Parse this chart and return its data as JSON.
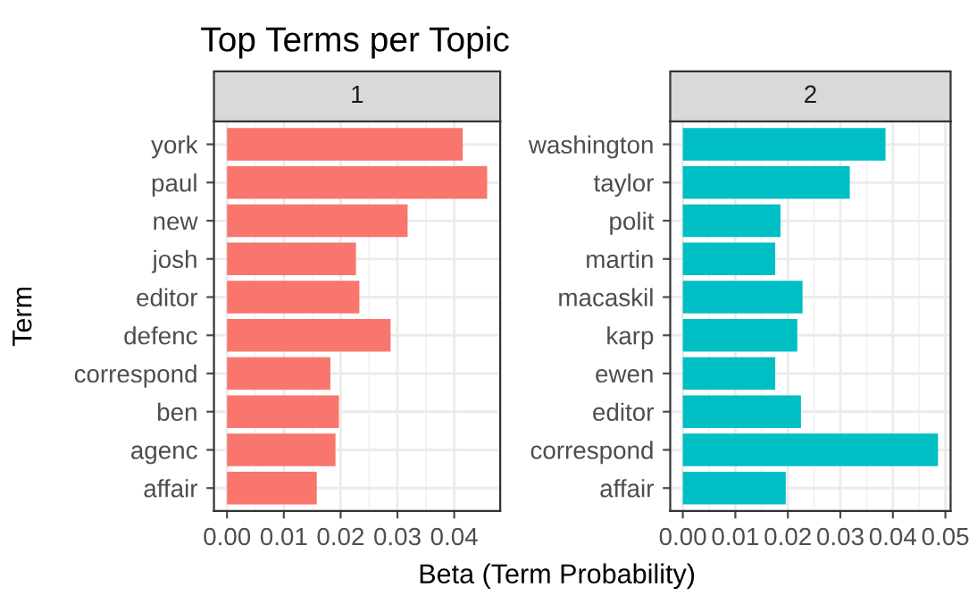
{
  "chart_data": [
    {
      "type": "bar",
      "orientation": "horizontal",
      "title": "Top Terms per Topic",
      "subtitle": "1",
      "ylabel": "Term",
      "xlabel": "Beta (Term Probability)",
      "categories": [
        "york",
        "paul",
        "new",
        "josh",
        "editor",
        "defenc",
        "correspond",
        "ben",
        "agenc",
        "affair"
      ],
      "series": [
        {
          "color": "#f8766d",
          "values": [
            0.0415,
            0.0458,
            0.0318,
            0.0227,
            0.0233,
            0.0288,
            0.0182,
            0.0197,
            0.0191,
            0.0158
          ]
        }
      ],
      "xlim": [
        -0.0023,
        0.0481
      ],
      "xticks": [
        {
          "value": 0,
          "label": "0.00"
        },
        {
          "value": 0.01,
          "label": "0.01"
        },
        {
          "value": 0.02,
          "label": "0.02"
        },
        {
          "value": 0.03,
          "label": "0.03"
        },
        {
          "value": 0.04,
          "label": "0.04"
        }
      ],
      "grid": true
    },
    {
      "type": "bar",
      "orientation": "horizontal",
      "subtitle": "2",
      "categories": [
        "washington",
        "taylor",
        "polit",
        "martin",
        "macaskil",
        "karp",
        "ewen",
        "editor",
        "correspond",
        "affair"
      ],
      "series": [
        {
          "color": "#00bfc4",
          "values": [
            0.0386,
            0.0318,
            0.0186,
            0.0176,
            0.0228,
            0.0218,
            0.0176,
            0.0225,
            0.0486,
            0.0196
          ]
        }
      ],
      "xlim": [
        -0.0024,
        0.051
      ],
      "xticks": [
        {
          "value": 0,
          "label": "0.00"
        },
        {
          "value": 0.01,
          "label": "0.01"
        },
        {
          "value": 0.02,
          "label": "0.02"
        },
        {
          "value": 0.03,
          "label": "0.03"
        },
        {
          "value": 0.04,
          "label": "0.04"
        },
        {
          "value": 0.05,
          "label": "0.05"
        }
      ],
      "grid": true
    }
  ]
}
